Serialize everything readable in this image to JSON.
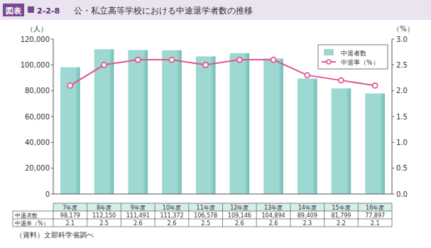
{
  "chart_data": {
    "type": "bar",
    "figure_label": "図表",
    "figure_number": "2-2-8",
    "title": "公・私立高等学校における中途退学者数の推移",
    "ylabel": "（人）",
    "y2label": "（%）",
    "source": "（資料）文部科学省調べ",
    "categories": [
      "7年度",
      "8年度",
      "9年度",
      "10年度",
      "11年度",
      "12年度",
      "13年度",
      "14年度",
      "15年度",
      "16年度"
    ],
    "series": [
      {
        "name": "中退者数",
        "type": "bar",
        "color": "#9ed8d2",
        "values": [
          98179,
          112150,
          111491,
          111372,
          106578,
          109146,
          104894,
          89409,
          81799,
          77897
        ],
        "value_labels": [
          "98,179",
          "112,150",
          "111,491",
          "111,372",
          "106,578",
          "109,146",
          "104,894",
          "89,409",
          "81,799",
          "77,897"
        ]
      },
      {
        "name": "中退率（%）",
        "type": "line",
        "axis": "y2",
        "color": "#e0558f",
        "marker": "circle",
        "line_style": "solid",
        "values": [
          2.1,
          2.5,
          2.6,
          2.6,
          2.5,
          2.6,
          2.6,
          2.3,
          2.2,
          2.1
        ]
      }
    ],
    "ylim": [
      0,
      120000
    ],
    "yticks": [
      0,
      {
        "value": 20000,
        "label": "20,000"
      },
      {
        "value": 40000,
        "label": "40,000"
      },
      {
        "value": 60000,
        "label": "60,000"
      },
      {
        "value": 80000,
        "label": "80,000"
      },
      {
        "value": 100000,
        "label": "100,000"
      },
      {
        "value": 120000,
        "label": "120,000"
      }
    ],
    "y2lim": [
      0,
      3
    ],
    "y2ticks": [
      {
        "value": 0,
        "label": "0.0"
      },
      {
        "value": 0.5,
        "label": "0.5"
      },
      {
        "value": 1,
        "label": "1.0"
      },
      {
        "value": 1.5,
        "label": "1.5"
      },
      {
        "value": 2,
        "label": "2.0"
      },
      {
        "value": 2.5,
        "label": "2.5"
      },
      {
        "value": 3,
        "label": "3.0"
      }
    ],
    "grid": false,
    "legend": "top-right"
  }
}
